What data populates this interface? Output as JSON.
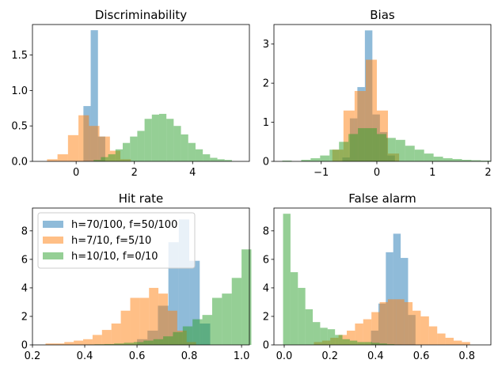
{
  "colors": {
    "blue": "#1f77b4",
    "orange": "#ff7f0e",
    "green": "#2ca02c",
    "bar_alpha": 0.5
  },
  "legend": {
    "placement": "upper-left",
    "entries": [
      {
        "label": "h=70/100, f=50/100",
        "color": "#1f77b4"
      },
      {
        "label": "h=7/10, f=5/10",
        "color": "#ff7f0e"
      },
      {
        "label": "h=10/10, f=0/10",
        "color": "#2ca02c"
      }
    ]
  },
  "chart_data": [
    {
      "type": "bar",
      "title": "Discriminability",
      "xlim": [
        -1.5,
        5.95
      ],
      "ylim": [
        0,
        1.93
      ],
      "xticks": [
        0,
        2,
        4
      ],
      "yticks": [
        0.0,
        0.5,
        1.0,
        1.5
      ],
      "ytick_labels": [
        "0.0",
        "0.5",
        "1.0",
        "1.5"
      ],
      "series": [
        {
          "color": "#1f77b4",
          "start": 0.25,
          "width": 0.25,
          "values": [
            0.78,
            1.85,
            0.35
          ]
        },
        {
          "color": "#ff7f0e",
          "start": -1.0,
          "width": 0.36,
          "values": [
            0.03,
            0.1,
            0.37,
            0.65,
            0.5,
            0.35,
            0.15,
            0.03
          ]
        },
        {
          "color": "#2ca02c",
          "start": 0.6,
          "width": 0.25,
          "values": [
            0.02,
            0.06,
            0.1,
            0.17,
            0.26,
            0.35,
            0.43,
            0.6,
            0.66,
            0.67,
            0.6,
            0.5,
            0.38,
            0.26,
            0.17,
            0.1,
            0.05,
            0.03,
            0.02
          ]
        }
      ]
    },
    {
      "type": "bar",
      "title": "Bias",
      "xlim": [
        -1.85,
        2.05
      ],
      "ylim": [
        0,
        3.5
      ],
      "xticks": [
        -1,
        0,
        1,
        2
      ],
      "yticks": [
        0,
        1,
        2,
        3
      ],
      "ytick_labels": [
        "0",
        "1",
        "2",
        "3"
      ],
      "series": [
        {
          "color": "#1f77b4",
          "start": -0.62,
          "width": 0.135,
          "values": [
            0.1,
            1.1,
            1.9,
            3.35,
            1.2,
            0.75,
            0.15
          ]
        },
        {
          "color": "#ff7f0e",
          "start": -0.8,
          "width": 0.2,
          "values": [
            0.3,
            1.3,
            1.8,
            2.6,
            1.3,
            0.2
          ]
        },
        {
          "color": "#2ca02c",
          "start": -1.7,
          "width": 0.17,
          "values": [
            0.02,
            0.0,
            0.04,
            0.08,
            0.15,
            0.3,
            0.5,
            0.7,
            0.85,
            0.85,
            0.7,
            0.6,
            0.55,
            0.4,
            0.3,
            0.2,
            0.12,
            0.08,
            0.06,
            0.04,
            0.03,
            0.02
          ]
        }
      ]
    },
    {
      "type": "bar",
      "title": "Hit rate",
      "xlim": [
        0.2,
        1.03
      ],
      "ylim": [
        0,
        9.6
      ],
      "xticks": [
        0.2,
        0.4,
        0.6,
        0.8,
        1.0
      ],
      "xtick_labels": [
        "0.2",
        "0.4",
        "0.6",
        "0.8",
        "1.0"
      ],
      "yticks": [
        0,
        2,
        4,
        6,
        8
      ],
      "ytick_labels": [
        "0",
        "2",
        "4",
        "6",
        "8"
      ],
      "series": [
        {
          "color": "#1f77b4",
          "start": 0.6,
          "width": 0.04,
          "values": [
            0.4,
            1.0,
            2.75,
            7.2,
            8.8,
            5.9,
            1.5
          ]
        },
        {
          "color": "#ff7f0e",
          "start": 0.25,
          "width": 0.036,
          "values": [
            0.1,
            0.1,
            0.2,
            0.3,
            0.4,
            0.7,
            1.05,
            1.5,
            2.4,
            3.3,
            3.3,
            4.0,
            3.6,
            2.4,
            1.0,
            0.2
          ]
        },
        {
          "color": "#2ca02c",
          "start": 0.4,
          "width": 0.0375,
          "values": [
            0.02,
            0.04,
            0.06,
            0.1,
            0.15,
            0.2,
            0.3,
            0.4,
            0.6,
            0.9,
            1.3,
            1.8,
            2.1,
            3.3,
            3.6,
            4.7,
            6.7
          ]
        }
      ]
    },
    {
      "type": "bar",
      "title": "False alarm",
      "xlim": [
        -0.045,
        0.905
      ],
      "ylim": [
        0,
        9.6
      ],
      "xticks": [
        0.0,
        0.2,
        0.4,
        0.6,
        0.8
      ],
      "xtick_labels": [
        "0.0",
        "0.2",
        "0.4",
        "0.6",
        "0.8"
      ],
      "yticks": [
        0,
        2,
        4,
        6,
        8
      ],
      "ytick_labels": [
        "0",
        "2",
        "4",
        "6",
        "8"
      ],
      "series": [
        {
          "color": "#1f77b4",
          "start": 0.38,
          "width": 0.0325,
          "values": [
            1.0,
            2.9,
            6.5,
            7.8,
            6.1,
            2.1
          ]
        },
        {
          "color": "#ff7f0e",
          "start": 0.13,
          "width": 0.036,
          "values": [
            0.2,
            0.3,
            0.5,
            0.7,
            1.0,
            1.5,
            1.8,
            2.3,
            3.0,
            3.2,
            3.2,
            3.0,
            2.4,
            2.0,
            1.3,
            0.8,
            0.5,
            0.3,
            0.2
          ]
        },
        {
          "color": "#2ca02c",
          "start": -0.005,
          "width": 0.0325,
          "values": [
            9.2,
            5.1,
            4.0,
            2.5,
            1.6,
            1.2,
            1.1,
            0.7,
            0.4,
            0.3,
            0.2,
            0.2,
            0.15,
            0.1,
            0.05,
            0.02
          ]
        }
      ]
    }
  ]
}
